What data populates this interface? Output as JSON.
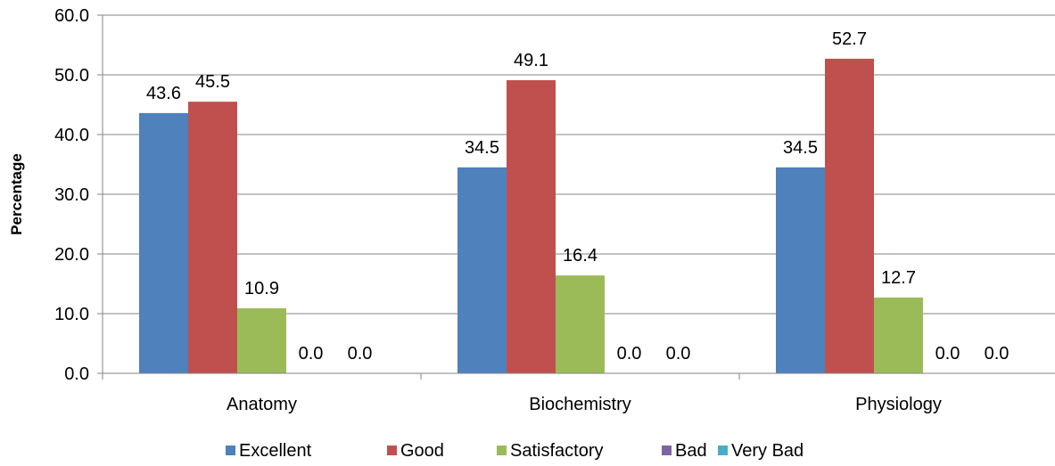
{
  "chart_data": {
    "type": "bar",
    "title": "",
    "xlabel": "",
    "ylabel": "Percentage",
    "ylim": [
      0,
      60
    ],
    "yticks": [
      "0.0",
      "10.0",
      "20.0",
      "30.0",
      "40.0",
      "50.0",
      "60.0"
    ],
    "grid": "horizontal",
    "legend_position": "bottom",
    "categories": [
      "Anatomy",
      "Biochemistry",
      "Physiology"
    ],
    "series": [
      {
        "name": "Excellent",
        "color": "#4F81BD",
        "values": [
          43.6,
          34.5,
          34.5
        ],
        "labels": [
          "43.6",
          "34.5",
          "34.5"
        ]
      },
      {
        "name": "Good",
        "color": "#C0504D",
        "values": [
          45.5,
          49.1,
          52.7
        ],
        "labels": [
          "45.5",
          "49.1",
          "52.7"
        ]
      },
      {
        "name": "Satisfactory",
        "color": "#9BBB59",
        "values": [
          10.9,
          16.4,
          12.7
        ],
        "labels": [
          "10.9",
          "16.4",
          "12.7"
        ]
      },
      {
        "name": "Bad",
        "color": "#8064A2",
        "values": [
          0.0,
          0.0,
          0.0
        ],
        "labels": [
          "0.0",
          "0.0",
          "0.0"
        ]
      },
      {
        "name": "Very Bad",
        "color": "#4BACC6",
        "values": [
          0.0,
          0.0,
          0.0
        ],
        "labels": [
          "0.0",
          "0.0",
          "0.0"
        ]
      }
    ]
  }
}
